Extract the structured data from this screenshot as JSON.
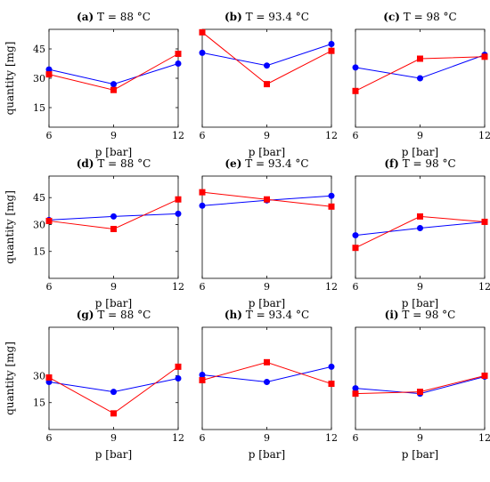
{
  "chart_data": [
    {
      "type": "line",
      "label": "(a)",
      "title": "T = 88 °C",
      "xlabel": "p [bar]",
      "ylabel": "quantity [mg]",
      "x": [
        6,
        9,
        12
      ],
      "xticks": [
        "6",
        "9",
        "12"
      ],
      "yticks": [
        "15",
        "30",
        "45"
      ],
      "ylim": [
        5,
        55
      ],
      "series": [
        {
          "color": "#0000ff",
          "marker": "circle",
          "values": [
            34.5,
            27,
            37.5
          ]
        },
        {
          "color": "#ff0000",
          "marker": "square",
          "values": [
            32,
            24,
            42.5
          ]
        }
      ]
    },
    {
      "type": "line",
      "label": "(b)",
      "title": "T = 93.4 °C",
      "xlabel": "p [bar]",
      "ylabel": "",
      "x": [
        6,
        9,
        12
      ],
      "xticks": [
        "6",
        "9",
        "12"
      ],
      "yticks": [],
      "ylim": [
        5,
        55
      ],
      "series": [
        {
          "color": "#0000ff",
          "marker": "circle",
          "values": [
            43,
            36.5,
            47.5
          ]
        },
        {
          "color": "#ff0000",
          "marker": "square",
          "values": [
            53.5,
            27,
            44
          ]
        }
      ]
    },
    {
      "type": "line",
      "label": "(c)",
      "title": "T = 98 °C",
      "xlabel": "p [bar]",
      "ylabel": "",
      "x": [
        6,
        9,
        12
      ],
      "xticks": [
        "6",
        "9",
        "12"
      ],
      "yticks": [],
      "ylim": [
        5,
        55
      ],
      "series": [
        {
          "color": "#0000ff",
          "marker": "circle",
          "values": [
            35.5,
            30,
            42
          ]
        },
        {
          "color": "#ff0000",
          "marker": "square",
          "values": [
            23.5,
            40,
            41
          ]
        }
      ]
    },
    {
      "type": "line",
      "label": "(d)",
      "title": "T = 88 °C",
      "xlabel": "p [bar]",
      "ylabel": "quantity [mg]",
      "x": [
        6,
        9,
        12
      ],
      "xticks": [
        "6",
        "9",
        "12"
      ],
      "yticks": [
        "15",
        "30",
        "45"
      ],
      "ylim": [
        0,
        57
      ],
      "series": [
        {
          "color": "#0000ff",
          "marker": "circle",
          "values": [
            32.5,
            34.5,
            36
          ]
        },
        {
          "color": "#ff0000",
          "marker": "square",
          "values": [
            32,
            27.5,
            44
          ]
        }
      ]
    },
    {
      "type": "line",
      "label": "(e)",
      "title": "T = 93.4 °C",
      "xlabel": "p [bar]",
      "ylabel": "",
      "x": [
        6,
        9,
        12
      ],
      "xticks": [
        "6",
        "9",
        "12"
      ],
      "yticks": [],
      "ylim": [
        0,
        57
      ],
      "series": [
        {
          "color": "#0000ff",
          "marker": "circle",
          "values": [
            40.5,
            43.5,
            46
          ]
        },
        {
          "color": "#ff0000",
          "marker": "square",
          "values": [
            48,
            44,
            40
          ]
        }
      ]
    },
    {
      "type": "line",
      "label": "(f)",
      "title": "T = 98 °C",
      "xlabel": "p [bar]",
      "ylabel": "",
      "x": [
        6,
        9,
        12
      ],
      "xticks": [
        "6",
        "9",
        "12"
      ],
      "yticks": [],
      "ylim": [
        0,
        57
      ],
      "series": [
        {
          "color": "#0000ff",
          "marker": "circle",
          "values": [
            24,
            28,
            31.5
          ]
        },
        {
          "color": "#ff0000",
          "marker": "square",
          "values": [
            17,
            34.5,
            31.5
          ]
        }
      ]
    },
    {
      "type": "line",
      "label": "(g)",
      "title": "T = 88 °C",
      "xlabel": "p [bar]",
      "ylabel": "quantity [mg]",
      "x": [
        6,
        9,
        12
      ],
      "xticks": [
        "6",
        "9",
        "12"
      ],
      "yticks": [
        "15",
        "30"
      ],
      "ylim": [
        0,
        57
      ],
      "series": [
        {
          "color": "#0000ff",
          "marker": "circle",
          "values": [
            26.5,
            21,
            28.5
          ]
        },
        {
          "color": "#ff0000",
          "marker": "square",
          "values": [
            29,
            9,
            35
          ]
        }
      ]
    },
    {
      "type": "line",
      "label": "(h)",
      "title": "T = 93.4 °C",
      "xlabel": "p [bar]",
      "ylabel": "",
      "x": [
        6,
        9,
        12
      ],
      "xticks": [
        "6",
        "9",
        "12"
      ],
      "yticks": [],
      "ylim": [
        0,
        57
      ],
      "series": [
        {
          "color": "#0000ff",
          "marker": "circle",
          "values": [
            30.5,
            26.5,
            35
          ]
        },
        {
          "color": "#ff0000",
          "marker": "square",
          "values": [
            27.5,
            37.5,
            25.5
          ]
        }
      ]
    },
    {
      "type": "line",
      "label": "(i)",
      "title": "T = 98 °C",
      "xlabel": "p [bar]",
      "ylabel": "",
      "x": [
        6,
        9,
        12
      ],
      "xticks": [
        "6",
        "9",
        "12"
      ],
      "yticks": [],
      "ylim": [
        0,
        57
      ],
      "series": [
        {
          "color": "#0000ff",
          "marker": "circle",
          "values": [
            23,
            20,
            29.5
          ]
        },
        {
          "color": "#ff0000",
          "marker": "square",
          "values": [
            20,
            21,
            30
          ]
        }
      ]
    }
  ]
}
